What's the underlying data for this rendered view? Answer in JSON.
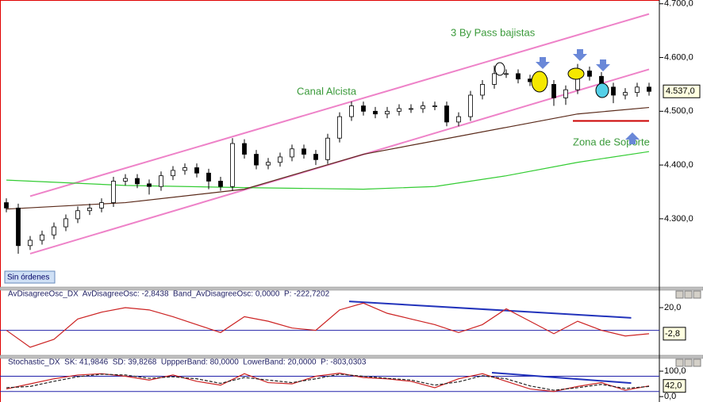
{
  "chart_data": [
    {
      "type": "candlestick",
      "categories": [
        null,
        null,
        null,
        null,
        null,
        null,
        null,
        null,
        null,
        null,
        null,
        null,
        null,
        null,
        null,
        null,
        null,
        null,
        null,
        null,
        null,
        null,
        null,
        null,
        null,
        null,
        null,
        null,
        null,
        null,
        null,
        null,
        null,
        null,
        null,
        null,
        null,
        null,
        null,
        null,
        null,
        null,
        null,
        null,
        null,
        null,
        null,
        null,
        null,
        null,
        null,
        null,
        null,
        null,
        null
      ],
      "open": [
        4330,
        4320,
        4250,
        4260,
        4270,
        4285,
        4300,
        4315,
        4320,
        4330,
        4370,
        4375,
        4365,
        4360,
        4380,
        4390,
        4395,
        4385,
        4370,
        4360,
        4440,
        4420,
        4400,
        4405,
        4415,
        4430,
        4420,
        4410,
        4450,
        4490,
        4510,
        4500,
        4495,
        4500,
        4505,
        4505,
        4510,
        4510,
        4480,
        4490,
        4530,
        4550,
        4570,
        4570,
        4560,
        4555,
        4550,
        4525,
        4540,
        4575,
        4565,
        4545,
        4530,
        4535,
        4545
      ],
      "high": [
        4338,
        4328,
        4268,
        4278,
        4293,
        4308,
        4323,
        4328,
        4338,
        4378,
        4383,
        4383,
        4373,
        4388,
        4398,
        4403,
        4403,
        4393,
        4378,
        4450,
        4448,
        4428,
        4413,
        4423,
        4438,
        4438,
        4428,
        4458,
        4498,
        4518,
        4518,
        4508,
        4508,
        4513,
        4513,
        4518,
        4518,
        4518,
        4498,
        4538,
        4558,
        4585,
        4578,
        4578,
        4568,
        4563,
        4558,
        4548,
        4588,
        4583,
        4573,
        4553,
        4543,
        4553,
        4553
      ],
      "low": [
        4312,
        4235,
        4242,
        4252,
        4262,
        4277,
        4292,
        4307,
        4312,
        4322,
        4362,
        4357,
        4345,
        4352,
        4372,
        4382,
        4377,
        4355,
        4352,
        4352,
        4412,
        4392,
        4392,
        4397,
        4407,
        4412,
        4400,
        4402,
        4442,
        4482,
        4492,
        4487,
        4487,
        4492,
        4497,
        4497,
        4502,
        4472,
        4472,
        4482,
        4522,
        4542,
        4562,
        4552,
        4547,
        4542,
        4510,
        4512,
        4532,
        4557,
        4537,
        4515,
        4522,
        4527,
        4529
      ],
      "close": [
        4320,
        4250,
        4260,
        4270,
        4285,
        4300,
        4315,
        4320,
        4330,
        4370,
        4375,
        4365,
        4360,
        4380,
        4390,
        4395,
        4385,
        4370,
        4360,
        4440,
        4420,
        4400,
        4405,
        4415,
        4430,
        4420,
        4410,
        4450,
        4490,
        4510,
        4500,
        4495,
        4500,
        4505,
        4505,
        4510,
        4510,
        4480,
        4490,
        4530,
        4550,
        4570,
        4570,
        4560,
        4555,
        4550,
        4525,
        4540,
        4575,
        4565,
        4545,
        4530,
        4535,
        4545,
        4537
      ],
      "last_label": "4.537,0",
      "series": [
        {
          "color": "#33cc33",
          "x": [
            0,
            10,
            20,
            30,
            36,
            42,
            48,
            54
          ],
          "values": [
            4372,
            4362,
            4358,
            4355,
            4360,
            4380,
            4405,
            4425
          ]
        },
        {
          "color": "#5a2a1a",
          "x": [
            0,
            10,
            20,
            30,
            36,
            42,
            48,
            54
          ],
          "values": [
            4318,
            4330,
            4355,
            4420,
            4445,
            4470,
            4495,
            4507
          ]
        }
      ],
      "trend_lines": [
        {
          "color": "#ee82c8",
          "x": [
            2,
            54
          ],
          "values": [
            4342,
            4681
          ]
        },
        {
          "color": "#ee82c8",
          "x": [
            2,
            54
          ],
          "values": [
            4235,
            4578
          ]
        },
        {
          "color": "#cc0000",
          "x": [
            47.6,
            54
          ],
          "values": [
            4482,
            4482
          ]
        }
      ],
      "ylim": [
        4173,
        4707
      ],
      "yticks": [
        {
          "value": 4700,
          "label": "4.700,0"
        },
        {
          "value": 4600,
          "label": "4.600,0"
        },
        {
          "value": 4500,
          "label": "4.500,0"
        },
        {
          "value": 4400,
          "label": "4.400,0"
        },
        {
          "value": 4300,
          "label": "4.300,0"
        }
      ],
      "annotations": [
        "3 By Pass bajistas",
        "Canal Alcista",
        "Zona de Soporte"
      ],
      "status": "Sin órdenes"
    },
    {
      "type": "line",
      "header": "AvDisagreeOsc_DX  AvDisagreeOsc: -2,8438  Band_AvDisagreeOsc: 0,0000  P: -222,7202",
      "series": [
        {
          "color": "#cc2222",
          "x": [
            0,
            2,
            4,
            6,
            8,
            10,
            12,
            14,
            16,
            18,
            20,
            22,
            24,
            26,
            28,
            30,
            32,
            34,
            36,
            38,
            40,
            42,
            44,
            46,
            48,
            50,
            52,
            54
          ],
          "values": [
            0,
            -15,
            -8,
            10,
            16,
            20,
            18,
            12,
            5,
            -2,
            12,
            8,
            2,
            0,
            18,
            24,
            15,
            10,
            5,
            -2,
            5,
            19,
            8,
            -3,
            8,
            0,
            -5,
            -3
          ]
        }
      ],
      "bands": [
        {
          "color": "#2222aa",
          "value": 0
        }
      ],
      "trend_lines": [
        {
          "color": "#2233bb",
          "x": [
            28.8,
            52.5
          ],
          "values": [
            25.5,
            11
          ]
        }
      ],
      "last_label": "-2,8",
      "ylim": [
        -22,
        27
      ],
      "yticks": [
        {
          "value": 20,
          "label": "20,0"
        }
      ]
    },
    {
      "type": "line",
      "header": "Stochastic_DX  SK: 41,9846  SD: 39,8268  UppperBand: 80,0000  LowerBand: 20,0000  P: -803,0303",
      "series": [
        {
          "color": "#cc2222",
          "x": [
            0,
            2,
            4,
            6,
            8,
            10,
            12,
            14,
            16,
            18,
            20,
            22,
            24,
            26,
            28,
            30,
            32,
            34,
            36,
            38,
            40,
            42,
            44,
            46,
            48,
            50,
            52,
            54
          ],
          "values": [
            30,
            50,
            70,
            85,
            90,
            80,
            65,
            85,
            60,
            45,
            90,
            55,
            50,
            80,
            92,
            75,
            70,
            60,
            35,
            70,
            90,
            60,
            30,
            20,
            40,
            55,
            25,
            42
          ]
        },
        {
          "color": "#222222",
          "x": [
            0,
            2,
            4,
            6,
            8,
            10,
            12,
            14,
            16,
            18,
            20,
            22,
            24,
            26,
            28,
            30,
            32,
            34,
            36,
            38,
            40,
            42,
            44,
            46,
            48,
            50,
            52,
            54
          ],
          "values": [
            35,
            40,
            60,
            78,
            88,
            85,
            72,
            78,
            70,
            52,
            75,
            65,
            55,
            70,
            88,
            80,
            72,
            65,
            45,
            58,
            82,
            70,
            42,
            25,
            35,
            48,
            32,
            40
          ],
          "dash": true
        }
      ],
      "bands": [
        {
          "color": "#2222aa",
          "value": 80
        },
        {
          "color": "#2222aa",
          "value": 20
        }
      ],
      "trend_lines": [
        {
          "color": "#2233bb",
          "x": [
            40.8,
            52.5
          ],
          "values": [
            94,
            53
          ]
        }
      ],
      "last_label": "42,0",
      "ylim": [
        -15,
        119
      ],
      "yticks": [
        {
          "value": 100,
          "label": "100,0"
        },
        {
          "value": 0,
          "label": "0,0"
        }
      ]
    }
  ]
}
